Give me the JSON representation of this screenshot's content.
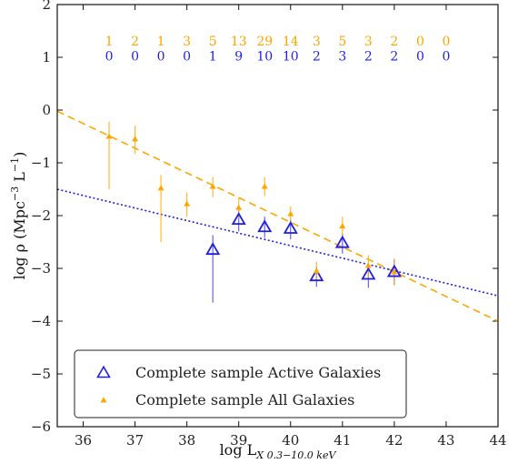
{
  "chart_data": {
    "type": "scatter",
    "xlabel": "log L",
    "xlabel_sub": "X 0.3−10.0 keV",
    "ylabel": "log ρ (Mpc",
    "ylabel_sup1": "−3",
    "ylabel_mid": " L",
    "ylabel_sup2": "−1",
    "ylabel_end": ")",
    "xlim": [
      35.5,
      44
    ],
    "ylim": [
      -6,
      2
    ],
    "xticks": [
      36,
      37,
      38,
      39,
      40,
      41,
      42,
      43,
      44
    ],
    "yticks": [
      -6,
      -5,
      -4,
      -3,
      -2,
      -1,
      0,
      1,
      2
    ],
    "xtick_labels": [
      "36",
      "37",
      "38",
      "39",
      "40",
      "41",
      "42",
      "43",
      "44"
    ],
    "ytick_labels": [
      "−6",
      "−5",
      "−4",
      "−3",
      "−2",
      "−1",
      "0",
      "1",
      "2"
    ],
    "colors": {
      "active": "#1f1fe0",
      "all": "#ffa500"
    },
    "legend": {
      "placement": "lower-left",
      "entries": [
        "Complete sample Active Galaxies",
        "Complete sample All Galaxies"
      ]
    },
    "series": [
      {
        "name": "Complete sample Active Galaxies",
        "marker": "open-triangle",
        "x": [
          38.5,
          39.0,
          39.5,
          40.0,
          40.5,
          41.0,
          41.5,
          42.0
        ],
        "y": [
          -2.65,
          -2.08,
          -2.22,
          -2.25,
          -3.15,
          -2.52,
          -3.12,
          -3.07
        ],
        "yerr_low": [
          1.0,
          0.22,
          0.2,
          0.2,
          0.2,
          0.2,
          0.25,
          0.25
        ],
        "yerr_high": [
          0.28,
          0.2,
          0.2,
          0.18,
          0.18,
          0.18,
          0.2,
          0.25
        ]
      },
      {
        "name": "Complete sample All Galaxies",
        "marker": "filled-triangle",
        "x": [
          36.5,
          37.0,
          37.5,
          38.0,
          38.5,
          39.0,
          39.5,
          40.0,
          40.5,
          41.0,
          41.5,
          42.0
        ],
        "y": [
          -0.5,
          -0.55,
          -1.48,
          -1.78,
          -1.45,
          -1.85,
          -1.45,
          -1.97,
          -3.05,
          -2.2,
          -2.95,
          -3.07
        ],
        "yerr_low": [
          1.0,
          0.28,
          1.02,
          0.25,
          0.2,
          0.2,
          0.18,
          0.18,
          0.2,
          0.2,
          0.25,
          0.25
        ],
        "yerr_high": [
          0.28,
          0.25,
          0.25,
          0.22,
          0.18,
          0.18,
          0.18,
          0.15,
          0.18,
          0.18,
          0.2,
          0.25
        ]
      }
    ],
    "fits": [
      {
        "series": "all",
        "style": "dashed",
        "x": [
          35.5,
          44.0
        ],
        "y": [
          -0.02,
          -4.0
        ]
      },
      {
        "series": "active",
        "style": "dotted",
        "x": [
          35.5,
          44.0
        ],
        "y": [
          -1.5,
          -3.52
        ]
      }
    ],
    "count_annotations": {
      "x": [
        36.5,
        37.0,
        37.5,
        38.0,
        38.5,
        39.0,
        39.5,
        40.0,
        40.5,
        41.0,
        41.5,
        42.0,
        42.5,
        43.0
      ],
      "all": [
        "1",
        "2",
        "1",
        "3",
        "5",
        "13",
        "29",
        "14",
        "3",
        "5",
        "3",
        "2",
        "0",
        "0"
      ],
      "active": [
        "0",
        "0",
        "0",
        "0",
        "1",
        "9",
        "10",
        "10",
        "2",
        "3",
        "2",
        "2",
        "0",
        "0"
      ]
    }
  }
}
